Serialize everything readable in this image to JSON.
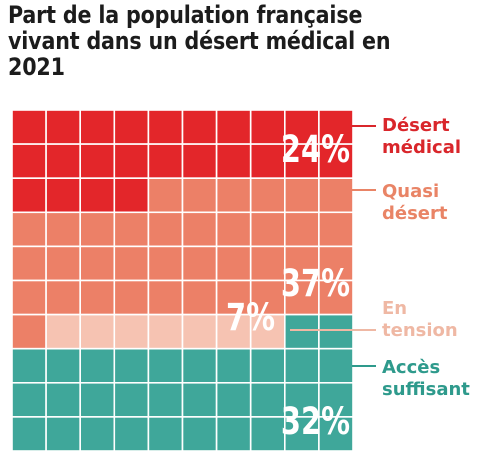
{
  "title_line1": "Part de la population française",
  "title_line2": "vivant dans un désert médical en 2021",
  "chart_data": {
    "type": "waffle",
    "grid": {
      "columns": 10,
      "rows": 10,
      "total": 100
    },
    "series": [
      {
        "name": "Désert médical",
        "label_lines": [
          "Désert",
          "médical"
        ],
        "value": 24,
        "value_label": "24%",
        "color": "#e3262a",
        "label_color": "#d9262b"
      },
      {
        "name": "Quasi désert",
        "label_lines": [
          "Quasi",
          "désert"
        ],
        "value": 37,
        "value_label": "37%",
        "color": "#ec8067",
        "label_color": "#e98466"
      },
      {
        "name": "En tension",
        "label_lines": [
          "En",
          "tension"
        ],
        "value": 7,
        "value_label": "7%",
        "color": "#f6c3b2",
        "label_color": "#efb8a4"
      },
      {
        "name": "Accès suffisant",
        "label_lines": [
          "Accès",
          "suffisant"
        ],
        "value": 32,
        "value_label": "32%",
        "color": "#3fa79a",
        "label_color": "#2e9a8c"
      }
    ]
  }
}
